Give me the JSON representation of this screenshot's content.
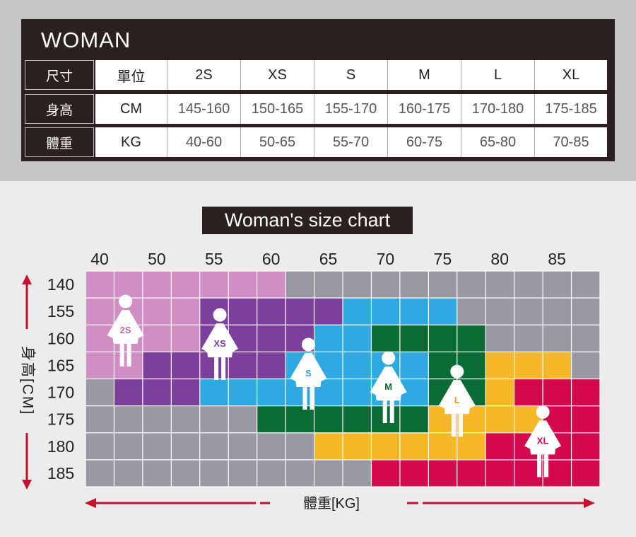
{
  "size_table": {
    "title": "WOMAN",
    "header_row": {
      "label": "尺寸",
      "unit_label": "單位",
      "sizes": [
        "2S",
        "XS",
        "S",
        "M",
        "L",
        "XL"
      ]
    },
    "rows": [
      {
        "label": "身高",
        "unit": "CM",
        "values": [
          "145-160",
          "150-165",
          "155-170",
          "160-175",
          "170-180",
          "175-185"
        ]
      },
      {
        "label": "體重",
        "unit": "KG",
        "values": [
          "40-60",
          "50-65",
          "55-70",
          "60-75",
          "65-80",
          "70-85"
        ]
      }
    ]
  },
  "chart_data": {
    "type": "heatmap",
    "title": "Woman's size chart",
    "xlabel": "體重[KG]",
    "ylabel": "身高[CM]",
    "x_ticks": [
      "40",
      "50",
      "55",
      "60",
      "65",
      "70",
      "75",
      "80",
      "85"
    ],
    "y_ticks": [
      "140",
      "155",
      "160",
      "165",
      "170",
      "175",
      "180",
      "185"
    ],
    "columns": 18,
    "rows": 8,
    "background_color": "#9a98a3",
    "grid": true,
    "regions": [
      {
        "size": "2S",
        "color": "#d08ec4",
        "cells": [
          [
            0,
            0
          ],
          [
            1,
            0
          ],
          [
            2,
            0
          ],
          [
            3,
            0
          ],
          [
            4,
            0
          ],
          [
            5,
            0
          ],
          [
            6,
            0
          ],
          [
            0,
            1
          ],
          [
            1,
            1
          ],
          [
            2,
            1
          ],
          [
            3,
            1
          ],
          [
            0,
            2
          ],
          [
            1,
            2
          ],
          [
            2,
            2
          ],
          [
            3,
            2
          ],
          [
            0,
            3
          ],
          [
            1,
            3
          ]
        ]
      },
      {
        "size": "XS",
        "color": "#7d3f9c",
        "cells": [
          [
            4,
            1
          ],
          [
            5,
            1
          ],
          [
            6,
            1
          ],
          [
            7,
            1
          ],
          [
            8,
            1
          ],
          [
            4,
            2
          ],
          [
            5,
            2
          ],
          [
            6,
            2
          ],
          [
            7,
            2
          ],
          [
            2,
            3
          ],
          [
            3,
            3
          ],
          [
            4,
            3
          ],
          [
            5,
            3
          ],
          [
            6,
            3
          ],
          [
            1,
            4
          ],
          [
            2,
            4
          ],
          [
            3,
            4
          ]
        ]
      },
      {
        "size": "S",
        "color": "#2fa9e2",
        "cells": [
          [
            9,
            1
          ],
          [
            10,
            1
          ],
          [
            11,
            1
          ],
          [
            12,
            1
          ],
          [
            8,
            2
          ],
          [
            9,
            2
          ],
          [
            10,
            2
          ],
          [
            11,
            2
          ],
          [
            7,
            3
          ],
          [
            8,
            3
          ],
          [
            9,
            3
          ],
          [
            10,
            3
          ],
          [
            11,
            3
          ],
          [
            4,
            4
          ],
          [
            5,
            4
          ],
          [
            6,
            4
          ],
          [
            7,
            4
          ],
          [
            8,
            4
          ],
          [
            9,
            4
          ],
          [
            10,
            4
          ],
          [
            11,
            4
          ]
        ]
      },
      {
        "size": "M",
        "color": "#0a6b34",
        "cells": [
          [
            10,
            2
          ],
          [
            11,
            2
          ],
          [
            12,
            2
          ],
          [
            13,
            2
          ],
          [
            12,
            3
          ],
          [
            13,
            3
          ],
          [
            12,
            4
          ],
          [
            13,
            4
          ],
          [
            6,
            5
          ],
          [
            7,
            5
          ],
          [
            8,
            5
          ],
          [
            9,
            5
          ],
          [
            10,
            5
          ],
          [
            11,
            5
          ]
        ]
      },
      {
        "size": "L",
        "color": "#f6b728",
        "cells": [
          [
            14,
            3
          ],
          [
            15,
            3
          ],
          [
            16,
            3
          ],
          [
            14,
            4
          ],
          [
            15,
            4
          ],
          [
            16,
            4
          ],
          [
            12,
            5
          ],
          [
            13,
            5
          ],
          [
            14,
            5
          ],
          [
            15,
            5
          ],
          [
            16,
            5
          ],
          [
            8,
            6
          ],
          [
            9,
            6
          ],
          [
            10,
            6
          ],
          [
            11,
            6
          ],
          [
            12,
            6
          ],
          [
            13,
            6
          ]
        ]
      },
      {
        "size": "XL",
        "color": "#d4094d",
        "cells": [
          [
            15,
            4
          ],
          [
            16,
            4
          ],
          [
            17,
            4
          ],
          [
            16,
            5
          ],
          [
            17,
            5
          ],
          [
            14,
            6
          ],
          [
            15,
            6
          ],
          [
            16,
            6
          ],
          [
            17,
            6
          ],
          [
            10,
            7
          ],
          [
            11,
            7
          ],
          [
            12,
            7
          ],
          [
            13,
            7
          ],
          [
            14,
            7
          ],
          [
            15,
            7
          ],
          [
            16,
            7
          ],
          [
            17,
            7
          ]
        ]
      }
    ],
    "markers": [
      {
        "size": "2S",
        "text_color": "#c067b1",
        "col": 1.4,
        "row": 1.6
      },
      {
        "size": "XS",
        "text_color": "#7d3f9c",
        "col": 4.7,
        "row": 2.1
      },
      {
        "size": "S",
        "text_color": "#2fa9e2",
        "col": 7.8,
        "row": 3.2
      },
      {
        "size": "M",
        "text_color": "#0a6b34",
        "col": 10.6,
        "row": 3.7
      },
      {
        "size": "L",
        "text_color": "#e39d00",
        "col": 13.0,
        "row": 4.2
      },
      {
        "size": "XL",
        "text_color": "#d4094d",
        "col": 16.0,
        "row": 5.7
      }
    ]
  }
}
